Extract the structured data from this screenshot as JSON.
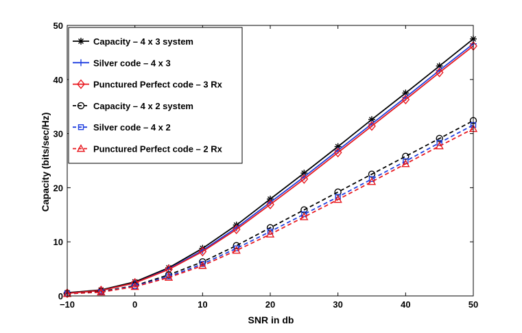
{
  "chart_data": {
    "type": "line",
    "xlabel": "SNR in db",
    "ylabel": "Capacity (bits/sec/Hz)",
    "xlim": [
      -10,
      50
    ],
    "ylim": [
      0,
      50
    ],
    "xticks": [
      "−10",
      "0",
      "10",
      "20",
      "30",
      "40",
      "50"
    ],
    "yticks": [
      "0",
      "10",
      "20",
      "30",
      "40",
      "50"
    ],
    "grid": false,
    "legend_position": "top-left",
    "x": [
      -10,
      -5,
      0,
      5,
      10,
      15,
      20,
      25,
      30,
      35,
      40,
      45,
      50
    ],
    "series": [
      {
        "name": "Capacity – 4 x 3 system",
        "color": "#000000",
        "dash": "solid",
        "marker": "asterisk",
        "values": [
          0.6,
          1.1,
          2.6,
          5.2,
          8.8,
          13.1,
          17.9,
          22.7,
          27.6,
          32.6,
          37.5,
          42.5,
          47.5
        ]
      },
      {
        "name": "Silver code – 4 x 3",
        "color": "#1f3fe0",
        "dash": "solid",
        "marker": "plus",
        "values": [
          0.5,
          1.0,
          2.4,
          5.0,
          8.4,
          12.6,
          17.3,
          22.0,
          26.9,
          31.8,
          36.7,
          41.7,
          46.6
        ]
      },
      {
        "name": "Punctured Perfect code – 3 Rx",
        "color": "#e8191f",
        "dash": "solid",
        "marker": "diamond",
        "values": [
          0.5,
          1.0,
          2.4,
          4.9,
          8.2,
          12.3,
          16.9,
          21.6,
          26.5,
          31.4,
          36.3,
          41.3,
          46.2
        ]
      },
      {
        "name": "Capacity – 4 x 2 system",
        "color": "#000000",
        "dash": "dashed",
        "marker": "circle",
        "values": [
          0.4,
          0.8,
          1.9,
          3.9,
          6.3,
          9.3,
          12.6,
          15.9,
          19.2,
          22.5,
          25.8,
          29.1,
          32.4
        ]
      },
      {
        "name": "Silver code – 4 x 2",
        "color": "#1f3fe0",
        "dash": "dashed",
        "marker": "square",
        "values": [
          0.4,
          0.7,
          1.8,
          3.6,
          5.9,
          8.8,
          11.9,
          15.1,
          18.3,
          21.6,
          24.9,
          28.3,
          31.6
        ]
      },
      {
        "name": "Punctured Perfect code – 2 Rx",
        "color": "#e8191f",
        "dash": "dashed",
        "marker": "triangle",
        "values": [
          0.4,
          0.7,
          1.7,
          3.4,
          5.6,
          8.4,
          11.4,
          14.6,
          17.8,
          21.1,
          24.4,
          27.7,
          30.9
        ]
      }
    ]
  }
}
